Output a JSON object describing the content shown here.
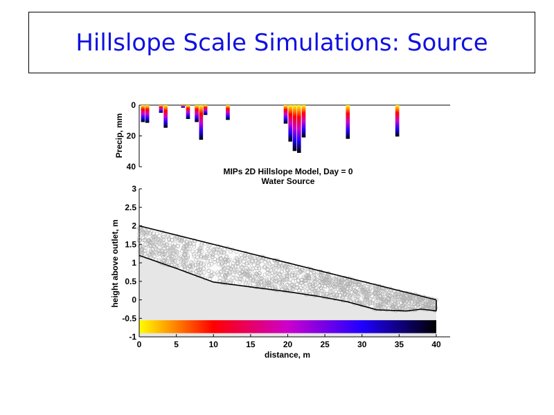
{
  "slide": {
    "title": "Hillslope Scale Simulations: Source"
  },
  "chart_data": [
    {
      "type": "bar",
      "orientation": "hanging",
      "ylabel": "Precip, mm",
      "ylim": [
        0,
        40
      ],
      "yticks": [
        "0",
        "20",
        "40"
      ],
      "xlim": [
        0,
        100
      ],
      "bars": [
        {
          "x": 1.2,
          "value": 11
        },
        {
          "x": 2.6,
          "value": 11.5
        },
        {
          "x": 7.0,
          "value": 5
        },
        {
          "x": 8.5,
          "value": 14.7
        },
        {
          "x": 14.1,
          "value": 1.7
        },
        {
          "x": 15.7,
          "value": 9
        },
        {
          "x": 18.5,
          "value": 11
        },
        {
          "x": 19.9,
          "value": 22.5
        },
        {
          "x": 21.3,
          "value": 6.4
        },
        {
          "x": 28.5,
          "value": 9.6
        },
        {
          "x": 47.1,
          "value": 12
        },
        {
          "x": 48.6,
          "value": 23.7
        },
        {
          "x": 50.0,
          "value": 29.8
        },
        {
          "x": 51.4,
          "value": 31
        },
        {
          "x": 52.9,
          "value": 21
        },
        {
          "x": 67.1,
          "value": 21.9
        },
        {
          "x": 83.0,
          "value": 20.4
        }
      ],
      "colormap": [
        "#ffff00",
        "#ff0000",
        "#cc00cc",
        "#2000ff",
        "#000000"
      ]
    },
    {
      "type": "area",
      "title": "MIPs 2D Hillslope Model, Day = 0",
      "subtitle": "Water Source",
      "xlabel": "distance, m",
      "ylabel": "height above outlet, m",
      "xlim": [
        0,
        40
      ],
      "ylim": [
        -1,
        3
      ],
      "xticks": [
        "0",
        "5",
        "10",
        "15",
        "20",
        "25",
        "30",
        "35",
        "40"
      ],
      "yticks": [
        "-1",
        "-0.5",
        "0",
        "0.5",
        "1",
        "1.5",
        "2",
        "2.5",
        "3"
      ],
      "surface": [
        [
          0,
          2
        ],
        [
          40,
          0
        ]
      ],
      "bedrock": [
        [
          0,
          1.2
        ],
        [
          5,
          0.85
        ],
        [
          10,
          0.48
        ],
        [
          15,
          0.35
        ],
        [
          20,
          0.22
        ],
        [
          24,
          0.1
        ],
        [
          28,
          -0.05
        ],
        [
          32,
          -0.27
        ],
        [
          36,
          -0.3
        ],
        [
          38,
          -0.25
        ],
        [
          40,
          -0.3
        ]
      ],
      "colorbar_range": [
        -0.9,
        -0.55
      ],
      "fill_color": "#e6e6e6",
      "particle_color": "#b0b0b0"
    }
  ]
}
